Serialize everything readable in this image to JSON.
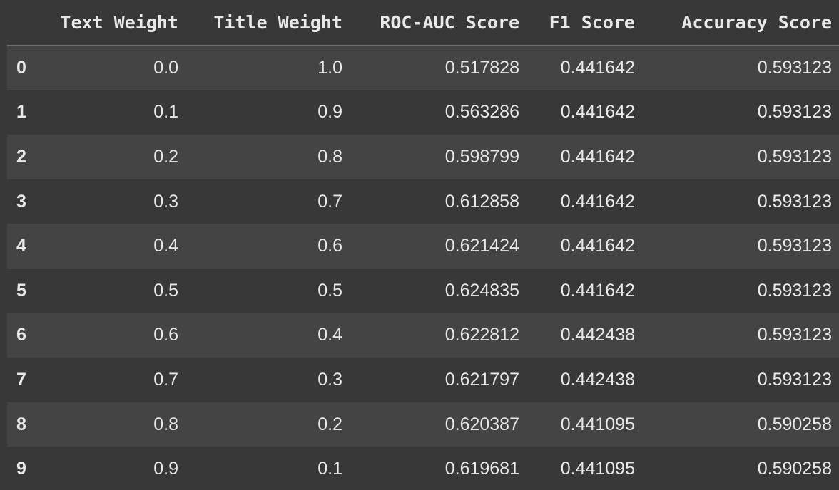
{
  "table": {
    "columns": [
      "",
      "Text Weight",
      "Title Weight",
      "ROC-AUC Score",
      "F1 Score",
      "Accuracy Score"
    ],
    "rows": [
      {
        "index": "0",
        "cells": [
          "0.0",
          "1.0",
          "0.517828",
          "0.441642",
          "0.593123"
        ]
      },
      {
        "index": "1",
        "cells": [
          "0.1",
          "0.9",
          "0.563286",
          "0.441642",
          "0.593123"
        ]
      },
      {
        "index": "2",
        "cells": [
          "0.2",
          "0.8",
          "0.598799",
          "0.441642",
          "0.593123"
        ]
      },
      {
        "index": "3",
        "cells": [
          "0.3",
          "0.7",
          "0.612858",
          "0.441642",
          "0.593123"
        ]
      },
      {
        "index": "4",
        "cells": [
          "0.4",
          "0.6",
          "0.621424",
          "0.441642",
          "0.593123"
        ]
      },
      {
        "index": "5",
        "cells": [
          "0.5",
          "0.5",
          "0.624835",
          "0.441642",
          "0.593123"
        ]
      },
      {
        "index": "6",
        "cells": [
          "0.6",
          "0.4",
          "0.622812",
          "0.442438",
          "0.593123"
        ]
      },
      {
        "index": "7",
        "cells": [
          "0.7",
          "0.3",
          "0.621797",
          "0.442438",
          "0.593123"
        ]
      },
      {
        "index": "8",
        "cells": [
          "0.8",
          "0.2",
          "0.620387",
          "0.441095",
          "0.590258"
        ]
      },
      {
        "index": "9",
        "cells": [
          "0.9",
          "0.1",
          "0.619681",
          "0.441095",
          "0.590258"
        ]
      }
    ]
  },
  "colors": {
    "background": "#383838",
    "row_stripe": "#444444",
    "text": "#e8e8e8",
    "header_rule": "#6e6e6e"
  }
}
